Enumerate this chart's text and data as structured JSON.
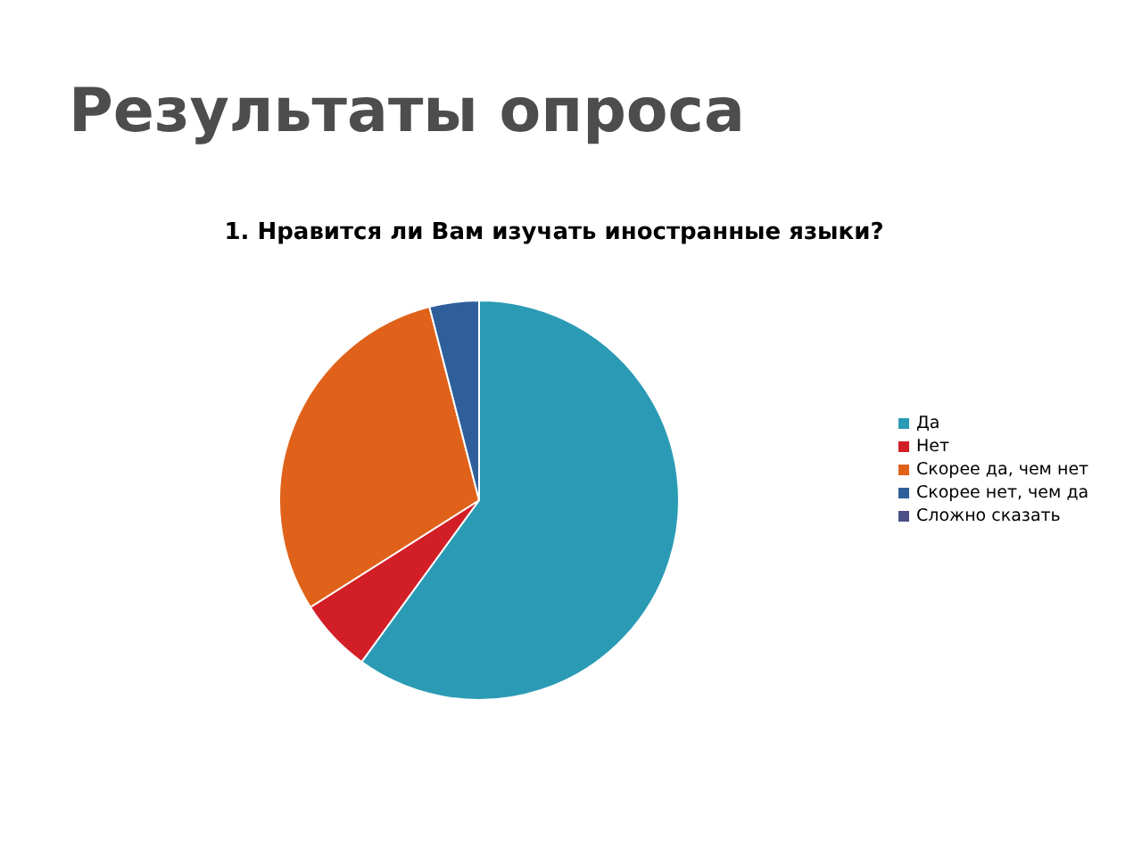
{
  "chart_data": {
    "type": "pie",
    "title": "Результаты опроса",
    "subtitle": "1. Нравится ли Вам изучать иностранные языки?",
    "categories": [
      "Да",
      "Нет",
      "Скорее да, чем нет",
      "Скорее нет, чем да",
      "Сложно сказать"
    ],
    "values": [
      60,
      6,
      30,
      4,
      0
    ],
    "colors": [
      "#2b9bb5",
      "#d21f27",
      "#e0621a",
      "#2f5f9a",
      "#4a4f86"
    ],
    "legend": "right"
  }
}
